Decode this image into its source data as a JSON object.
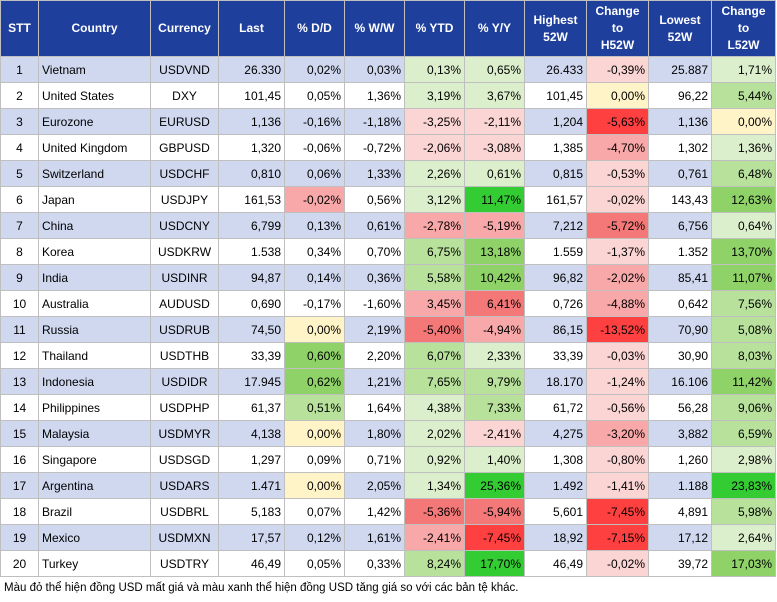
{
  "headers": [
    "STT",
    "Country",
    "Currency",
    "Last",
    "% D/D",
    "% W/W",
    "% YTD",
    "% Y/Y",
    "Highest\n52W",
    "Change\nto\nH52W",
    "Lowest\n52W",
    "Change\nto\nL52W"
  ],
  "colors": {
    "header_bg": "#1f3f9c",
    "row_odd": "#d0d8f0",
    "row_even": "#ffffff",
    "red_strong": "#ff4040",
    "red_mid": "#f47878",
    "red_light": "#f8a8a8",
    "red_pale": "#fbd4d4",
    "green_strong": "#33cc33",
    "green_mid": "#8ed268",
    "green_light": "#b8e29c",
    "green_pale": "#dcefcc",
    "yellow_pale": "#fff4c8"
  },
  "rows": [
    {
      "stt": "1",
      "country": "Vietnam",
      "currency": "USDVND",
      "last": "26.330",
      "dd": "0,02%",
      "ww": "0,03%",
      "ytd": "0,13%",
      "yy": "0,65%",
      "high": "26.433",
      "ch_high": "-0,39%",
      "low": "25.887",
      "ch_low": "1,71%"
    },
    {
      "stt": "2",
      "country": "United States",
      "currency": "DXY",
      "last": "101,45",
      "dd": "0,05%",
      "ww": "1,36%",
      "ytd": "3,19%",
      "yy": "3,67%",
      "high": "101,45",
      "ch_high": "0,00%",
      "low": "96,22",
      "ch_low": "5,44%"
    },
    {
      "stt": "3",
      "country": "Eurozone",
      "currency": "EURUSD",
      "last": "1,136",
      "dd": "-0,16%",
      "ww": "-1,18%",
      "ytd": "-3,25%",
      "yy": "-2,11%",
      "high": "1,204",
      "ch_high": "-5,63%",
      "low": "1,136",
      "ch_low": "0,00%"
    },
    {
      "stt": "4",
      "country": "United Kingdom",
      "currency": "GBPUSD",
      "last": "1,320",
      "dd": "-0,06%",
      "ww": "-0,72%",
      "ytd": "-2,06%",
      "yy": "-3,08%",
      "high": "1,385",
      "ch_high": "-4,70%",
      "low": "1,302",
      "ch_low": "1,36%"
    },
    {
      "stt": "5",
      "country": "Switzerland",
      "currency": "USDCHF",
      "last": "0,810",
      "dd": "0,06%",
      "ww": "1,33%",
      "ytd": "2,26%",
      "yy": "0,61%",
      "high": "0,815",
      "ch_high": "-0,53%",
      "low": "0,761",
      "ch_low": "6,48%"
    },
    {
      "stt": "6",
      "country": "Japan",
      "currency": "USDJPY",
      "last": "161,53",
      "dd": "-0,02%",
      "ww": "0,56%",
      "ytd": "3,12%",
      "yy": "11,47%",
      "high": "161,57",
      "ch_high": "-0,02%",
      "low": "143,43",
      "ch_low": "12,63%"
    },
    {
      "stt": "7",
      "country": "China",
      "currency": "USDCNY",
      "last": "6,799",
      "dd": "0,13%",
      "ww": "0,61%",
      "ytd": "-2,78%",
      "yy": "-5,19%",
      "high": "7,212",
      "ch_high": "-5,72%",
      "low": "6,756",
      "ch_low": "0,64%"
    },
    {
      "stt": "8",
      "country": "Korea",
      "currency": "USDKRW",
      "last": "1.538",
      "dd": "0,34%",
      "ww": "0,70%",
      "ytd": "6,75%",
      "yy": "13,18%",
      "high": "1.559",
      "ch_high": "-1,37%",
      "low": "1.352",
      "ch_low": "13,70%"
    },
    {
      "stt": "9",
      "country": "India",
      "currency": "USDINR",
      "last": "94,87",
      "dd": "0,14%",
      "ww": "0,36%",
      "ytd": "5,58%",
      "yy": "10,42%",
      "high": "96,82",
      "ch_high": "-2,02%",
      "low": "85,41",
      "ch_low": "11,07%"
    },
    {
      "stt": "10",
      "country": "Australia",
      "currency": "AUDUSD",
      "last": "0,690",
      "dd": "-0,17%",
      "ww": "-1,60%",
      "ytd": "3,45%",
      "yy": "6,41%",
      "high": "0,726",
      "ch_high": "-4,88%",
      "low": "0,642",
      "ch_low": "7,56%"
    },
    {
      "stt": "11",
      "country": "Russia",
      "currency": "USDRUB",
      "last": "74,50",
      "dd": "0,00%",
      "ww": "2,19%",
      "ytd": "-5,40%",
      "yy": "-4,94%",
      "high": "86,15",
      "ch_high": "-13,52%",
      "low": "70,90",
      "ch_low": "5,08%"
    },
    {
      "stt": "12",
      "country": "Thailand",
      "currency": "USDTHB",
      "last": "33,39",
      "dd": "0,60%",
      "ww": "2,20%",
      "ytd": "6,07%",
      "yy": "2,33%",
      "high": "33,39",
      "ch_high": "-0,03%",
      "low": "30,90",
      "ch_low": "8,03%"
    },
    {
      "stt": "13",
      "country": "Indonesia",
      "currency": "USDIDR",
      "last": "17.945",
      "dd": "0,62%",
      "ww": "1,21%",
      "ytd": "7,65%",
      "yy": "9,79%",
      "high": "18.170",
      "ch_high": "-1,24%",
      "low": "16.106",
      "ch_low": "11,42%"
    },
    {
      "stt": "14",
      "country": "Philippines",
      "currency": "USDPHP",
      "last": "61,37",
      "dd": "0,51%",
      "ww": "1,64%",
      "ytd": "4,38%",
      "yy": "7,33%",
      "high": "61,72",
      "ch_high": "-0,56%",
      "low": "56,28",
      "ch_low": "9,06%"
    },
    {
      "stt": "15",
      "country": "Malaysia",
      "currency": "USDMYR",
      "last": "4,138",
      "dd": "0,00%",
      "ww": "1,80%",
      "ytd": "2,02%",
      "yy": "-2,41%",
      "high": "4,275",
      "ch_high": "-3,20%",
      "low": "3,882",
      "ch_low": "6,59%"
    },
    {
      "stt": "16",
      "country": "Singapore",
      "currency": "USDSGD",
      "last": "1,297",
      "dd": "0,09%",
      "ww": "0,71%",
      "ytd": "0,92%",
      "yy": "1,40%",
      "high": "1,308",
      "ch_high": "-0,80%",
      "low": "1,260",
      "ch_low": "2,98%"
    },
    {
      "stt": "17",
      "country": "Argentina",
      "currency": "USDARS",
      "last": "1.471",
      "dd": "0,00%",
      "ww": "2,05%",
      "ytd": "1,34%",
      "yy": "25,36%",
      "high": "1.492",
      "ch_high": "-1,41%",
      "low": "1.188",
      "ch_low": "23,83%"
    },
    {
      "stt": "18",
      "country": "Brazil",
      "currency": "USDBRL",
      "last": "5,183",
      "dd": "0,07%",
      "ww": "1,42%",
      "ytd": "-5,36%",
      "yy": "-5,94%",
      "high": "5,601",
      "ch_high": "-7,45%",
      "low": "4,891",
      "ch_low": "5,98%"
    },
    {
      "stt": "19",
      "country": "Mexico",
      "currency": "USDMXN",
      "last": "17,57",
      "dd": "0,12%",
      "ww": "1,61%",
      "ytd": "-2,41%",
      "yy": "-7,45%",
      "high": "18,92",
      "ch_high": "-7,15%",
      "low": "17,12",
      "ch_low": "2,64%"
    },
    {
      "stt": "20",
      "country": "Turkey",
      "currency": "USDTRY",
      "last": "46,49",
      "dd": "0,05%",
      "ww": "0,33%",
      "ytd": "8,24%",
      "yy": "17,70%",
      "high": "46,49",
      "ch_high": "-0,02%",
      "low": "39,72",
      "ch_low": "17,03%"
    }
  ],
  "highlights": {
    "3": {
      "ytd": "red_pale",
      "yy": "red_pale",
      "ch_high": "red_strong",
      "ch_low": "yellow_pale"
    },
    "2": {
      "ytd": "green_pale",
      "yy": "green_pale",
      "ch_high": "yellow_pale",
      "ch_low": "green_light"
    },
    "4": {
      "ytd": "red_pale",
      "yy": "red_pale",
      "ch_high": "red_light",
      "ch_low": "green_pale"
    },
    "1": {
      "ytd": "green_pale",
      "yy": "green_pale",
      "ch_high": "red_pale",
      "ch_low": "green_pale"
    },
    "5": {
      "ytd": "green_pale",
      "yy": "green_pale",
      "ch_high": "red_pale",
      "ch_low": "green_light"
    },
    "6": {
      "dd": "red_light",
      "ytd": "green_pale",
      "yy": "green_strong",
      "ch_high": "red_pale",
      "ch_low": "green_mid"
    },
    "7": {
      "ytd": "red_light",
      "yy": "red_light",
      "ch_high": "red_mid",
      "ch_low": "green_pale"
    },
    "8": {
      "ytd": "green_light",
      "yy": "green_mid",
      "ch_high": "red_pale",
      "ch_low": "green_mid"
    },
    "9": {
      "ytd": "green_light",
      "yy": "green_mid",
      "ch_high": "red_light",
      "ch_low": "green_mid"
    },
    "10": {
      "ytd": "red_light",
      "yy": "red_mid",
      "ch_high": "red_light",
      "ch_low": "green_light"
    },
    "11": {
      "dd": "yellow_pale",
      "ytd": "red_mid",
      "yy": "red_light",
      "ch_high": "red_strong",
      "ch_low": "green_light"
    },
    "12": {
      "dd": "green_mid",
      "ytd": "green_light",
      "yy": "green_pale",
      "ch_high": "red_pale",
      "ch_low": "green_light"
    },
    "13": {
      "dd": "green_mid",
      "ytd": "green_light",
      "yy": "green_light",
      "ch_high": "red_pale",
      "ch_low": "green_mid"
    },
    "14": {
      "dd": "green_light",
      "ytd": "green_pale",
      "yy": "green_light",
      "ch_high": "red_pale",
      "ch_low": "green_light"
    },
    "15": {
      "dd": "yellow_pale",
      "ytd": "green_pale",
      "yy": "red_pale",
      "ch_high": "red_light",
      "ch_low": "green_light"
    },
    "16": {
      "ytd": "green_pale",
      "yy": "green_pale",
      "ch_high": "red_pale",
      "ch_low": "green_pale"
    },
    "17": {
      "dd": "yellow_pale",
      "ytd": "green_pale",
      "yy": "green_strong",
      "ch_high": "red_pale",
      "ch_low": "green_strong"
    },
    "18": {
      "ytd": "red_mid",
      "yy": "red_mid",
      "ch_high": "red_strong",
      "ch_low": "green_light"
    },
    "19": {
      "ytd": "red_light",
      "yy": "red_strong",
      "ch_high": "red_strong",
      "ch_low": "green_pale"
    },
    "20": {
      "ytd": "green_light",
      "yy": "green_strong",
      "ch_high": "red_pale",
      "ch_low": "green_mid"
    }
  },
  "caption": "Màu đỏ thể hiện đồng USD mất giá và màu xanh thể hiện đồng USD tăng giá so với các bản tệ khác."
}
